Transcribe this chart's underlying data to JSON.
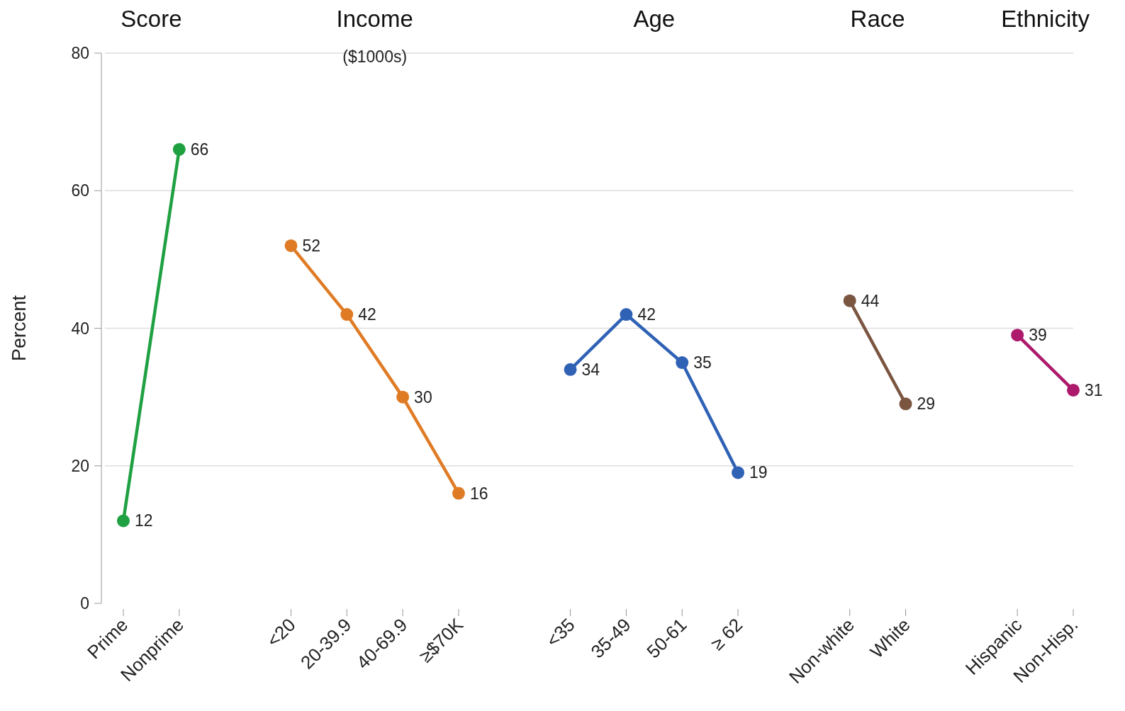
{
  "chart_data": {
    "type": "line",
    "ylabel": "Percent",
    "ylim": [
      0,
      80
    ],
    "yticks": [
      0,
      20,
      40,
      60,
      80
    ],
    "grid": "y",
    "marker": "circle",
    "data_labels": true,
    "categories": [
      "Prime",
      "Nonprime",
      null,
      "<20",
      "20-39.9",
      "40-69.9",
      "≥$70K",
      null,
      "<35",
      "35-49",
      "50-61",
      "≥ 62",
      null,
      "Non-white",
      "White",
      null,
      "Hispanic",
      "Non-Hisp."
    ],
    "series": [
      {
        "color": "#1fa142",
        "values": [
          12,
          66,
          null,
          null,
          null,
          null,
          null,
          null,
          null,
          null,
          null,
          null,
          null,
          null,
          null,
          null,
          null,
          null
        ]
      },
      {
        "color": "#e07b25",
        "values": [
          null,
          null,
          null,
          52,
          42,
          30,
          16,
          null,
          null,
          null,
          null,
          null,
          null,
          null,
          null,
          null,
          null,
          null
        ]
      },
      {
        "color": "#2f62b5",
        "values": [
          null,
          null,
          null,
          null,
          null,
          null,
          null,
          null,
          34,
          42,
          35,
          19,
          null,
          null,
          null,
          null,
          null,
          null
        ]
      },
      {
        "color": "#7a5540",
        "values": [
          null,
          null,
          null,
          null,
          null,
          null,
          null,
          null,
          null,
          null,
          null,
          null,
          null,
          44,
          29,
          null,
          null,
          null
        ]
      },
      {
        "color": "#ad1a6c",
        "values": [
          null,
          null,
          null,
          null,
          null,
          null,
          null,
          null,
          null,
          null,
          null,
          null,
          null,
          null,
          null,
          null,
          39,
          31
        ]
      }
    ],
    "annotations": [
      "Score",
      "Income",
      "Age",
      "Race",
      "Ethnicity",
      "($1000s)"
    ]
  }
}
